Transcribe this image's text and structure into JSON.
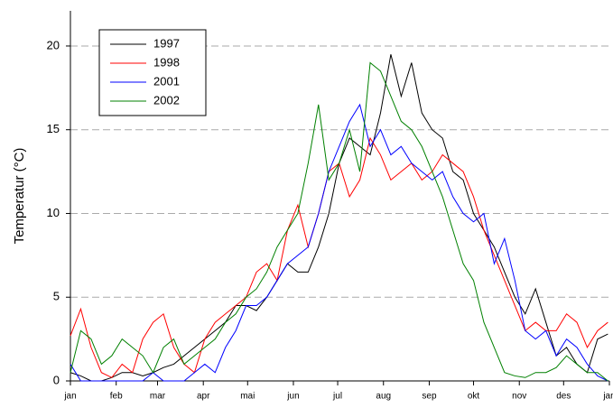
{
  "chart_data": {
    "type": "line",
    "ylabel": "Temperatur (°C)",
    "x": [
      1,
      8,
      15,
      22,
      29,
      36,
      43,
      50,
      57,
      64,
      71,
      78,
      85,
      92,
      99,
      106,
      113,
      120,
      127,
      134,
      141,
      148,
      155,
      162,
      169,
      176,
      183,
      190,
      197,
      204,
      211,
      218,
      225,
      232,
      239,
      246,
      253,
      260,
      267,
      274,
      281,
      288,
      295,
      302,
      309,
      316,
      323,
      330,
      337,
      344,
      351,
      358,
      365
    ],
    "series": [
      {
        "name": "1997",
        "color": "#000000",
        "values": [
          0.5,
          0.3,
          0,
          0,
          0.2,
          0.5,
          0.5,
          0.3,
          0.5,
          0.8,
          1.0,
          1.5,
          2.0,
          2.5,
          3.0,
          3.5,
          4.5,
          4.5,
          4.2,
          5.0,
          6.0,
          7.0,
          6.5,
          6.5,
          8.0,
          10.0,
          13.0,
          14.5,
          14.0,
          13.5,
          16.0,
          19.5,
          17.0,
          19.0,
          16.0,
          15.0,
          14.5,
          12.5,
          12.0,
          10.0,
          9.0,
          8.0,
          6.5,
          5.0,
          4.0,
          5.5,
          3.5,
          1.5,
          2.0,
          1.0,
          0.5,
          2.5,
          2.8
        ]
      },
      {
        "name": "1998",
        "color": "#ff0000",
        "values": [
          2.7,
          4.3,
          2.0,
          0.5,
          0.2,
          1.0,
          0.5,
          2.5,
          3.5,
          4.0,
          2.0,
          1.0,
          0.5,
          2.5,
          3.5,
          4.0,
          4.5,
          5.0,
          6.5,
          7.0,
          6.0,
          9.0,
          10.5,
          8.0,
          10.0,
          12.5,
          13.0,
          11.0,
          12.0,
          14.5,
          13.5,
          12.0,
          12.5,
          13.0,
          12.0,
          12.5,
          13.5,
          13.0,
          12.5,
          11.0,
          9.0,
          7.5,
          6.0,
          4.5,
          3.0,
          3.5,
          3.0,
          3.0,
          4.0,
          3.5,
          2.0,
          3.0,
          3.5
        ]
      },
      {
        "name": "2001",
        "color": "#0000ff",
        "values": [
          1.0,
          0,
          0,
          0,
          0,
          0,
          0,
          0,
          0.5,
          0,
          0,
          0,
          0.5,
          1.0,
          0.5,
          2.0,
          3.0,
          4.5,
          4.5,
          5.0,
          6.0,
          7.0,
          7.5,
          8.0,
          10.0,
          12.5,
          14.0,
          15.5,
          16.5,
          14.0,
          15.0,
          13.5,
          14.0,
          13.0,
          12.5,
          12.0,
          12.5,
          11.0,
          10.0,
          9.5,
          10.0,
          7.0,
          8.5,
          6.0,
          3.0,
          2.5,
          3.0,
          1.5,
          2.5,
          2.0,
          1.0,
          0.3,
          0
        ]
      },
      {
        "name": "2002",
        "color": "#008000",
        "values": [
          0.5,
          3.0,
          2.5,
          1.0,
          1.5,
          2.5,
          2.0,
          1.5,
          0.5,
          2.0,
          2.5,
          1.0,
          1.5,
          2.0,
          2.5,
          3.5,
          4.0,
          5.0,
          5.5,
          6.5,
          8.0,
          9.0,
          10.0,
          13.0,
          16.5,
          12.0,
          13.0,
          15.0,
          12.5,
          19.0,
          18.5,
          17.0,
          15.5,
          15.0,
          14.0,
          12.5,
          11.0,
          9.0,
          7.0,
          6.0,
          3.5,
          2.0,
          0.5,
          0.3,
          0.2,
          0.5,
          0.5,
          0.8,
          1.5,
          1.0,
          0.5,
          0.5,
          0
        ]
      }
    ],
    "xlim": [
      1,
      366
    ],
    "xticks": [
      {
        "value": 1,
        "label": "jan"
      },
      {
        "value": 32,
        "label": "feb"
      },
      {
        "value": 60,
        "label": "mar"
      },
      {
        "value": 91,
        "label": "apr"
      },
      {
        "value": 121,
        "label": "mai"
      },
      {
        "value": 152,
        "label": "jun"
      },
      {
        "value": 182,
        "label": "jul"
      },
      {
        "value": 213,
        "label": "aug"
      },
      {
        "value": 244,
        "label": "sep"
      },
      {
        "value": 274,
        "label": "okt"
      },
      {
        "value": 305,
        "label": "nov"
      },
      {
        "value": 335,
        "label": "des"
      },
      {
        "value": 366,
        "label": "jan"
      }
    ],
    "ylim": [
      0,
      22.1
    ],
    "yticks": [
      0,
      5,
      10,
      15,
      20
    ],
    "grid": true,
    "legend": "upper left"
  }
}
